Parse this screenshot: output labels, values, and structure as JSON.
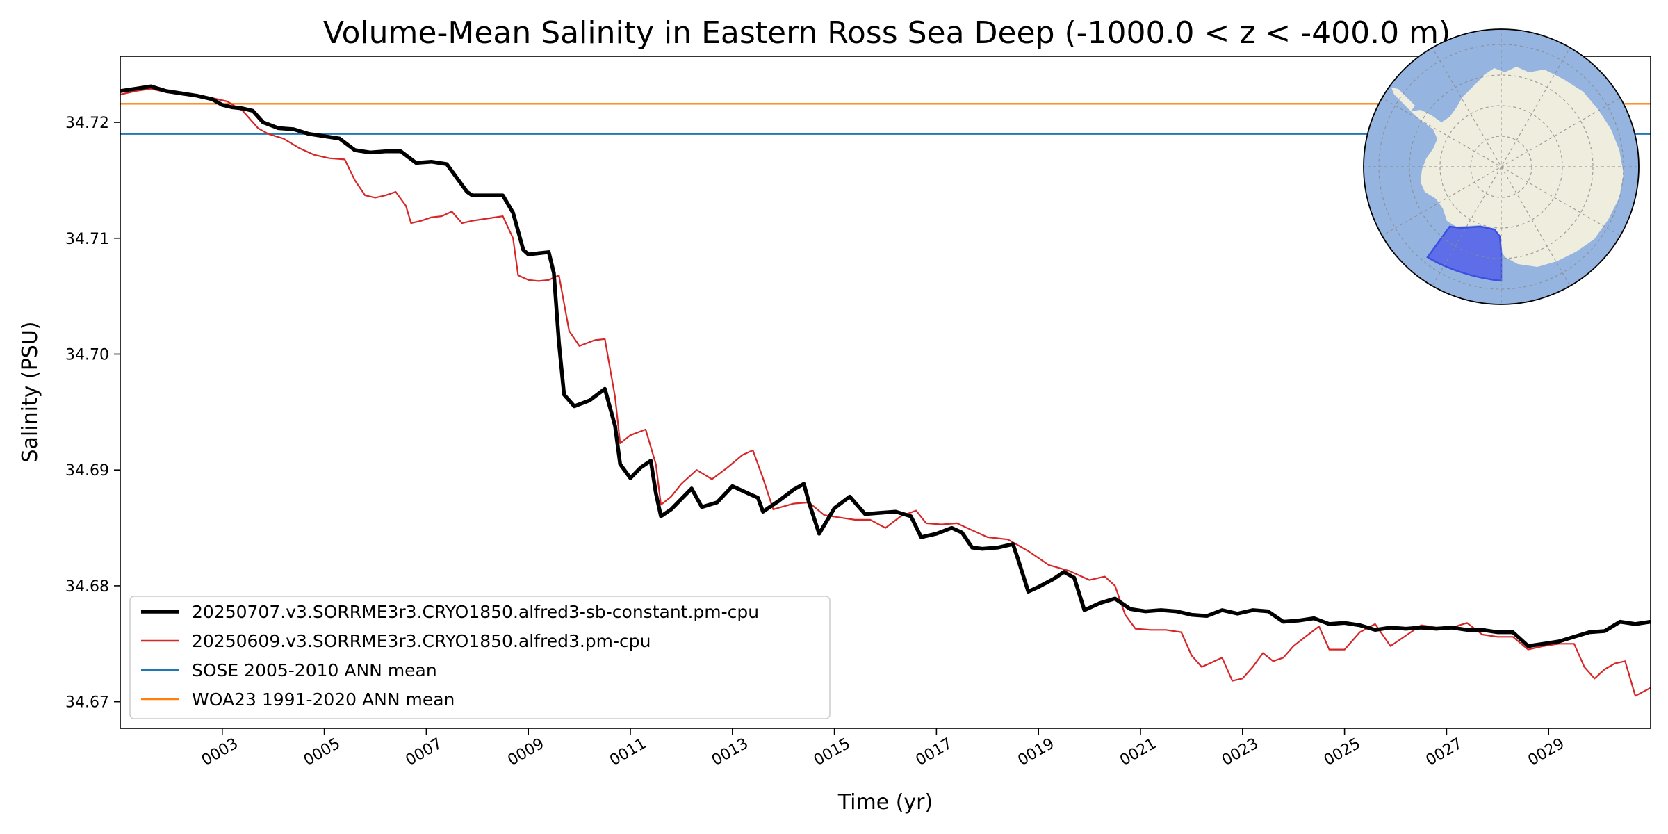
{
  "chart_data": {
    "type": "line",
    "title": "Volume-Mean Salinity in Eastern Ross Sea Deep (-1000.0 < z < -400.0 m)",
    "xlabel": "Time (yr)",
    "ylabel": "Salinity (PSU)",
    "xlim": [
      1.0,
      31.0
    ],
    "ylim": [
      34.6677,
      34.7257
    ],
    "x_ticks": [
      3,
      5,
      7,
      9,
      11,
      13,
      15,
      17,
      19,
      21,
      23,
      25,
      27,
      29
    ],
    "x_tick_labels": [
      "0003",
      "0005",
      "0007",
      "0009",
      "0011",
      "0013",
      "0015",
      "0017",
      "0019",
      "0021",
      "0023",
      "0025",
      "0027",
      "0029"
    ],
    "y_ticks": [
      34.67,
      34.68,
      34.69,
      34.7,
      34.71,
      34.72
    ],
    "y_tick_labels": [
      "34.67",
      "34.68",
      "34.69",
      "34.70",
      "34.71",
      "34.72"
    ],
    "grid": false,
    "legend_position": "lower-left",
    "series": [
      {
        "name": "20250707.v3.SORRME3r3.CRYO1850.alfred3-sb-constant.pm-cpu",
        "color": "#000000",
        "style": "thick",
        "x": [
          1.0,
          1.3,
          1.6,
          1.9,
          2.2,
          2.5,
          2.8,
          3.0,
          3.2,
          3.4,
          3.6,
          3.8,
          4.1,
          4.4,
          4.7,
          5.0,
          5.3,
          5.6,
          5.9,
          6.2,
          6.5,
          6.8,
          7.1,
          7.4,
          7.6,
          7.8,
          7.9,
          8.2,
          8.5,
          8.7,
          8.9,
          9.0,
          9.2,
          9.4,
          9.5,
          9.6,
          9.7,
          9.9,
          10.2,
          10.5,
          10.7,
          10.8,
          11.0,
          11.2,
          11.4,
          11.5,
          11.6,
          11.8,
          12.0,
          12.2,
          12.4,
          12.7,
          13.0,
          13.3,
          13.5,
          13.6,
          13.9,
          14.2,
          14.4,
          14.5,
          14.7,
          15.0,
          15.3,
          15.6,
          15.9,
          16.2,
          16.5,
          16.7,
          17.0,
          17.3,
          17.5,
          17.7,
          17.9,
          18.2,
          18.5,
          18.6,
          18.8,
          19.0,
          19.3,
          19.5,
          19.7,
          19.9,
          20.2,
          20.5,
          20.8,
          21.1,
          21.4,
          21.7,
          22.0,
          22.3,
          22.6,
          22.9,
          23.2,
          23.5,
          23.8,
          24.1,
          24.4,
          24.7,
          25.0,
          25.3,
          25.6,
          25.9,
          26.2,
          26.5,
          26.8,
          27.1,
          27.4,
          27.7,
          28.0,
          28.3,
          28.6,
          28.9,
          29.2,
          29.5,
          29.8,
          30.1,
          30.4,
          30.7,
          31.0
        ],
        "y": [
          34.7227,
          34.7229,
          34.7231,
          34.7227,
          34.7225,
          34.7223,
          34.722,
          34.7215,
          34.7213,
          34.7212,
          34.721,
          34.72,
          34.7195,
          34.7194,
          34.719,
          34.7188,
          34.7186,
          34.7176,
          34.7174,
          34.7175,
          34.7175,
          34.7165,
          34.7166,
          34.7164,
          34.7152,
          34.714,
          34.7137,
          34.7137,
          34.7137,
          34.7122,
          34.709,
          34.7086,
          34.7087,
          34.7088,
          34.707,
          34.701,
          34.6965,
          34.6955,
          34.696,
          34.697,
          34.6938,
          34.6905,
          34.6893,
          34.6902,
          34.6908,
          34.688,
          34.686,
          34.6866,
          34.6875,
          34.6884,
          34.6868,
          34.6872,
          34.6886,
          34.688,
          34.6876,
          34.6864,
          34.6873,
          34.6883,
          34.6888,
          34.6872,
          34.6845,
          34.6867,
          34.6877,
          34.6862,
          34.6863,
          34.6864,
          34.686,
          34.6842,
          34.6845,
          34.685,
          34.6846,
          34.6833,
          34.6832,
          34.6833,
          34.6836,
          34.6823,
          34.6795,
          34.6799,
          34.6806,
          34.6812,
          34.6807,
          34.6779,
          34.6785,
          34.6789,
          34.678,
          34.6778,
          34.6779,
          34.6778,
          34.6775,
          34.6774,
          34.6779,
          34.6776,
          34.6779,
          34.6778,
          34.6769,
          34.677,
          34.6772,
          34.6767,
          34.6768,
          34.6766,
          34.6762,
          34.6764,
          34.6763,
          34.6764,
          34.6763,
          34.6764,
          34.6762,
          34.6762,
          34.676,
          34.676,
          34.6748,
          34.675,
          34.6752,
          34.6756,
          34.676,
          34.6761,
          34.6769,
          34.6767,
          34.6769
        ]
      },
      {
        "name": "20250609.v3.SORRME3r3.CRYO1850.alfred3.pm-cpu",
        "color": "#d62728",
        "style": "thin",
        "x": [
          1.0,
          1.3,
          1.6,
          1.9,
          2.2,
          2.5,
          2.8,
          3.1,
          3.4,
          3.7,
          3.9,
          4.2,
          4.5,
          4.8,
          5.1,
          5.4,
          5.6,
          5.8,
          6.0,
          6.2,
          6.4,
          6.6,
          6.7,
          6.9,
          7.1,
          7.3,
          7.5,
          7.7,
          7.9,
          8.2,
          8.5,
          8.7,
          8.8,
          9.0,
          9.2,
          9.4,
          9.6,
          9.8,
          10.0,
          10.3,
          10.5,
          10.7,
          10.8,
          11.0,
          11.3,
          11.5,
          11.6,
          11.8,
          12.0,
          12.3,
          12.6,
          12.9,
          13.2,
          13.4,
          13.6,
          13.8,
          14.2,
          14.5,
          14.8,
          15.1,
          15.4,
          15.7,
          16.0,
          16.3,
          16.6,
          16.8,
          17.1,
          17.4,
          17.7,
          18.0,
          18.4,
          18.8,
          19.2,
          19.6,
          20.0,
          20.3,
          20.5,
          20.7,
          20.9,
          21.2,
          21.5,
          21.8,
          22.0,
          22.2,
          22.4,
          22.6,
          22.8,
          23.0,
          23.2,
          23.4,
          23.6,
          23.8,
          24.0,
          24.2,
          24.5,
          24.7,
          25.0,
          25.3,
          25.6,
          25.9,
          26.2,
          26.5,
          26.8,
          27.1,
          27.4,
          27.7,
          28.0,
          28.3,
          28.6,
          28.9,
          29.2,
          29.5,
          29.7,
          29.9,
          30.1,
          30.3,
          30.5,
          30.7,
          31.0
        ],
        "y": [
          34.7224,
          34.7227,
          34.7229,
          34.7226,
          34.7224,
          34.7223,
          34.7221,
          34.7218,
          34.721,
          34.7195,
          34.719,
          34.7186,
          34.7178,
          34.7172,
          34.7169,
          34.7168,
          34.715,
          34.7137,
          34.7135,
          34.7137,
          34.714,
          34.7128,
          34.7113,
          34.7115,
          34.7118,
          34.7119,
          34.7123,
          34.7113,
          34.7115,
          34.7117,
          34.7119,
          34.71,
          34.7068,
          34.7064,
          34.7063,
          34.7064,
          34.7068,
          34.702,
          34.7007,
          34.7012,
          34.7013,
          34.6963,
          34.6923,
          34.693,
          34.6935,
          34.6905,
          34.687,
          34.6877,
          34.6888,
          34.69,
          34.6892,
          34.6902,
          34.6913,
          34.6917,
          34.6893,
          34.6866,
          34.6871,
          34.6872,
          34.6861,
          34.6859,
          34.6857,
          34.6857,
          34.685,
          34.686,
          34.6865,
          34.6854,
          34.6853,
          34.6854,
          34.6848,
          34.6842,
          34.684,
          34.683,
          34.6818,
          34.6813,
          34.6805,
          34.6808,
          34.68,
          34.6775,
          34.6763,
          34.6762,
          34.6762,
          34.676,
          34.674,
          34.673,
          34.6734,
          34.6738,
          34.6718,
          34.672,
          34.673,
          34.6742,
          34.6735,
          34.6738,
          34.6748,
          34.6755,
          34.6765,
          34.6745,
          34.6745,
          34.676,
          34.6767,
          34.6748,
          34.6757,
          34.6766,
          34.6764,
          34.6764,
          34.6768,
          34.6758,
          34.6756,
          34.6756,
          34.6745,
          34.6748,
          34.675,
          34.675,
          34.673,
          34.672,
          34.6728,
          34.6733,
          34.6735,
          34.6705,
          34.6712
        ]
      },
      {
        "name": "SOSE 2005-2010 ANN mean",
        "color": "#1f77b4",
        "style": "hline",
        "y_const": 34.719
      },
      {
        "name": "WOA23 1991-2020 ANN mean",
        "color": "#ff7f0e",
        "style": "hline",
        "y_const": 34.7216
      }
    ]
  },
  "inset_map": {
    "ocean_color": "#95b4e0",
    "land_color": "#efedde",
    "region_color": "#5a6ae8"
  }
}
